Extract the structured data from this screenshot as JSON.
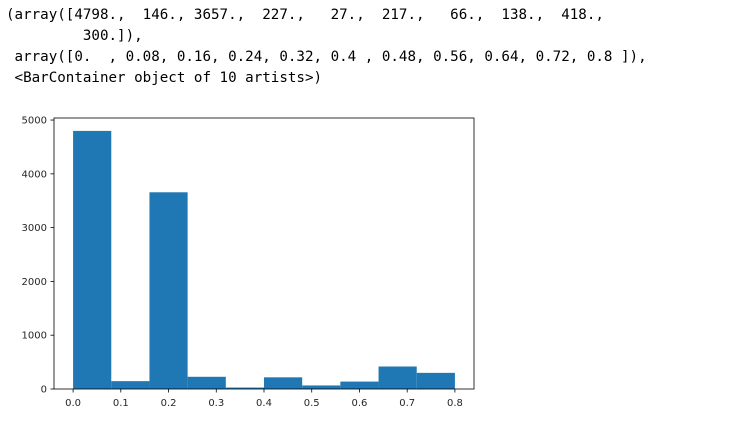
{
  "output": {
    "lines": [
      "(array([4798.,  146., 3657.,  227.,   27.,  217.,   66.,  138.,  418.,",
      "         300.]),",
      " array([0.  , 0.08, 0.16, 0.24, 0.32, 0.4 , 0.48, 0.56, 0.64, 0.72, 0.8 ]),",
      " <BarContainer object of 10 artists>)"
    ]
  },
  "chart_data": {
    "type": "bar",
    "bin_edges": [
      0.0,
      0.08,
      0.16,
      0.24,
      0.32,
      0.4,
      0.48,
      0.56,
      0.64,
      0.72,
      0.8
    ],
    "values": [
      4798,
      146,
      3657,
      227,
      27,
      217,
      66,
      138,
      418,
      300
    ],
    "xlim": [
      -0.04,
      0.84
    ],
    "ylim": [
      0,
      5038
    ],
    "xticks": [
      0.0,
      0.1,
      0.2,
      0.3,
      0.4,
      0.5,
      0.6,
      0.7,
      0.8
    ],
    "xtick_labels": [
      "0.0",
      "0.1",
      "0.2",
      "0.3",
      "0.4",
      "0.5",
      "0.6",
      "0.7",
      "0.8"
    ],
    "yticks": [
      0,
      1000,
      2000,
      3000,
      4000,
      5000
    ],
    "ytick_labels": [
      "0",
      "1000",
      "2000",
      "3000",
      "4000",
      "5000"
    ],
    "bar_color": "#1f77b4",
    "grid": false,
    "title": "",
    "xlabel": "",
    "ylabel": ""
  }
}
